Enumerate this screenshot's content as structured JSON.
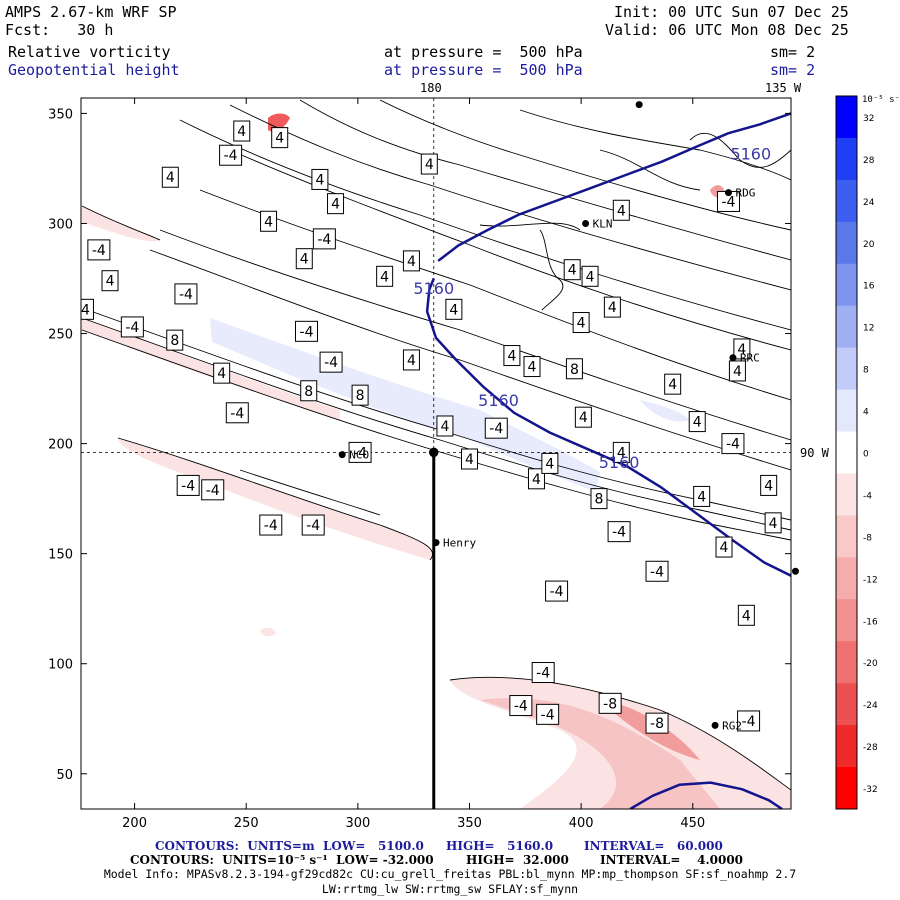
{
  "header": {
    "model": "AMPS 2.67-km WRF SP",
    "init": "Init: 00 UTC Sun 07 Dec 25",
    "fcst": "Fcst:   30 h",
    "valid": "Valid: 06 UTC Mon 08 Dec 25",
    "field1": "Relative vorticity",
    "field1_level": "at pressure =  500 hPa",
    "field1_sm": "sm= 2",
    "field2": "Geopotential height",
    "field2_level": "at pressure =  500 hPa",
    "field2_sm": "sm= 2"
  },
  "map_labels": {
    "top_180": "180",
    "top_135w": "135 W",
    "right_90w": "90 W"
  },
  "stations": [
    {
      "name": "NCO",
      "x": 293,
      "y": 195
    },
    {
      "name": "KLN",
      "x": 402,
      "y": 300
    },
    {
      "name": "RRC",
      "x": 468,
      "y": 239
    },
    {
      "name": "RDG",
      "x": 466,
      "y": 314
    },
    {
      "name": "Henry",
      "x": 335,
      "y": 155
    },
    {
      "name": "RG2",
      "x": 460,
      "y": 72
    },
    {
      "name": "",
      "x": 426,
      "y": 354
    },
    {
      "name": "",
      "x": 496,
      "y": 142
    },
    {
      "name": "",
      "x": 334,
      "y": 196
    }
  ],
  "colorbar": {
    "unit_label": "10⁻⁵ s⁻¹",
    "ticks": [
      "32",
      "28",
      "24",
      "20",
      "16",
      "12",
      "8",
      "4",
      "0",
      "-4",
      "-8",
      "-12",
      "-16",
      "-20",
      "-24",
      "-28",
      "-32"
    ],
    "colors": [
      "#0000ff",
      "#1f3ff6",
      "#3d5ef0",
      "#5b78ea",
      "#7e94ee",
      "#a1b0f3",
      "#c3cbf8",
      "#e4e8fc",
      "#ffffff",
      "#fde4e4",
      "#f9c8c8",
      "#f5acac",
      "#f29090",
      "#ef7171",
      "#ec5050",
      "#ee2a2a",
      "#ff0000"
    ]
  },
  "chart_data": {
    "type": "heatmap",
    "xlabel": "",
    "ylabel": "",
    "xlim": [
      176,
      494
    ],
    "ylim": [
      34,
      357
    ],
    "x_ticks": [
      200,
      250,
      300,
      350,
      400,
      450
    ],
    "y_ticks": [
      50,
      100,
      150,
      200,
      250,
      300,
      350
    ],
    "cross_section": {
      "x0": 334,
      "y0": 34,
      "x1": 334,
      "y1": 196
    },
    "crosshair": {
      "x": 334,
      "y": 196
    },
    "height_contours": [
      {
        "label": "5160",
        "points": [
          [
            334,
            275
          ],
          [
            332,
            270
          ],
          [
            331,
            260
          ],
          [
            335,
            248
          ],
          [
            344,
            238
          ],
          [
            356,
            226
          ],
          [
            370,
            214
          ],
          [
            386,
            205
          ],
          [
            404,
            197
          ],
          [
            420,
            190
          ],
          [
            436,
            180
          ],
          [
            452,
            168
          ],
          [
            468,
            156
          ],
          [
            482,
            146
          ],
          [
            494,
            140
          ]
        ]
      },
      {
        "label": "5160",
        "points": [
          [
            336,
            283
          ],
          [
            345,
            290
          ],
          [
            358,
            297
          ],
          [
            372,
            304
          ],
          [
            388,
            310
          ],
          [
            404,
            316
          ],
          [
            420,
            322
          ],
          [
            436,
            328
          ],
          [
            452,
            335
          ],
          [
            466,
            341
          ],
          [
            480,
            345
          ],
          [
            494,
            350
          ]
        ]
      },
      {
        "label": "",
        "points": [
          [
            422,
            34
          ],
          [
            432,
            40
          ],
          [
            444,
            45
          ],
          [
            458,
            46
          ],
          [
            472,
            43
          ],
          [
            484,
            38
          ],
          [
            490,
            34
          ]
        ]
      }
    ],
    "height_labels": [
      {
        "text": "5160",
        "x": 476,
        "y": 329
      },
      {
        "text": "5160",
        "x": 334,
        "y": 268
      },
      {
        "text": "5160",
        "x": 363,
        "y": 217
      },
      {
        "text": "5160",
        "x": 417,
        "y": 189
      }
    ],
    "vorticity_labels": [
      {
        "text": "-4",
        "x": 199,
        "y": 253
      },
      {
        "text": "-4",
        "x": 184,
        "y": 288
      },
      {
        "text": "-4",
        "x": 243,
        "y": 331
      },
      {
        "text": "4",
        "x": 248,
        "y": 342
      },
      {
        "text": "4",
        "x": 216,
        "y": 321
      },
      {
        "text": "4",
        "x": 260,
        "y": 301
      },
      {
        "text": "4",
        "x": 265,
        "y": 339
      },
      {
        "text": "4",
        "x": 283,
        "y": 320
      },
      {
        "text": "4",
        "x": 290,
        "y": 309
      },
      {
        "text": "-4",
        "x": 285,
        "y": 293
      },
      {
        "text": "4",
        "x": 276,
        "y": 284
      },
      {
        "text": "4",
        "x": 189,
        "y": 274
      },
      {
        "text": "4",
        "x": 178,
        "y": 261
      },
      {
        "text": "-4",
        "x": 223,
        "y": 268
      },
      {
        "text": "8",
        "x": 218,
        "y": 247
      },
      {
        "text": "4",
        "x": 239,
        "y": 232
      },
      {
        "text": "-4",
        "x": 277,
        "y": 251
      },
      {
        "text": "-4",
        "x": 288,
        "y": 237
      },
      {
        "text": "8",
        "x": 278,
        "y": 224
      },
      {
        "text": "8",
        "x": 301,
        "y": 222
      },
      {
        "text": "-4",
        "x": 246,
        "y": 214
      },
      {
        "text": "4",
        "x": 324,
        "y": 283
      },
      {
        "text": "4",
        "x": 312,
        "y": 276
      },
      {
        "text": "4",
        "x": 343,
        "y": 261
      },
      {
        "text": "4",
        "x": 324,
        "y": 238
      },
      {
        "text": "4",
        "x": 339,
        "y": 208
      },
      {
        "text": "-4",
        "x": 301,
        "y": 196
      },
      {
        "text": "-4",
        "x": 224,
        "y": 181
      },
      {
        "text": "-4",
        "x": 235,
        "y": 179
      },
      {
        "text": "-4",
        "x": 261,
        "y": 163
      },
      {
        "text": "-4",
        "x": 280,
        "y": 163
      },
      {
        "text": "4",
        "x": 350,
        "y": 193
      },
      {
        "text": "-4",
        "x": 362,
        "y": 207
      },
      {
        "text": "4",
        "x": 378,
        "y": 235
      },
      {
        "text": "4",
        "x": 369,
        "y": 240
      },
      {
        "text": "4",
        "x": 396,
        "y": 279
      },
      {
        "text": "4",
        "x": 404,
        "y": 276
      },
      {
        "text": "4",
        "x": 400,
        "y": 255
      },
      {
        "text": "4",
        "x": 414,
        "y": 262
      },
      {
        "text": "8",
        "x": 397,
        "y": 234
      },
      {
        "text": "4",
        "x": 380,
        "y": 184
      },
      {
        "text": "4",
        "x": 386,
        "y": 191
      },
      {
        "text": "8",
        "x": 408,
        "y": 175
      },
      {
        "text": "4",
        "x": 401,
        "y": 212
      },
      {
        "text": "4",
        "x": 418,
        "y": 196
      },
      {
        "text": "4",
        "x": 441,
        "y": 227
      },
      {
        "text": "4",
        "x": 452,
        "y": 210
      },
      {
        "text": "-4",
        "x": 468,
        "y": 200
      },
      {
        "text": "4",
        "x": 454,
        "y": 176
      },
      {
        "text": "-4",
        "x": 417,
        "y": 160
      },
      {
        "text": "4",
        "x": 484,
        "y": 181
      },
      {
        "text": "4",
        "x": 486,
        "y": 164
      },
      {
        "text": "4",
        "x": 464,
        "y": 153
      },
      {
        "text": "4",
        "x": 472,
        "y": 243
      },
      {
        "text": "4",
        "x": 470,
        "y": 233
      },
      {
        "text": "4",
        "x": 474,
        "y": 122
      },
      {
        "text": "-4",
        "x": 434,
        "y": 142
      },
      {
        "text": "-4",
        "x": 389,
        "y": 133
      },
      {
        "text": "4",
        "x": 418,
        "y": 306
      },
      {
        "text": "4",
        "x": 332,
        "y": 327
      },
      {
        "text": "-4",
        "x": 466,
        "y": 310
      },
      {
        "text": "-4",
        "x": 383,
        "y": 96
      },
      {
        "text": "-4",
        "x": 373,
        "y": 81
      },
      {
        "text": "-4",
        "x": 385,
        "y": 77
      },
      {
        "text": "-8",
        "x": 413,
        "y": 82
      },
      {
        "text": "-8",
        "x": 434,
        "y": 73
      },
      {
        "text": "-4",
        "x": 475,
        "y": 74
      }
    ]
  },
  "footer": {
    "contours1_label": "CONTOURS:  UNITS=m  LOW=   5100.0",
    "contours1_high": "HIGH=   5160.0",
    "contours1_interval": "INTERVAL=   60.000",
    "contours2_label": "CONTOURS:  UNITS=10⁻⁵ s⁻¹  LOW= -32.000",
    "contours2_high": "HIGH=  32.000",
    "contours2_interval": "INTERVAL=    4.0000",
    "model_info": "Model Info: MPASv8.2.3-194-gf29cd82c CU:cu_grell_freitas PBL:bl_mynn MP:mp_thompson SF:sf_noahmp 2.7",
    "model_info2": "LW:rrtmg_lw SW:rrtmg_sw SFLAY:sf_mynn"
  }
}
